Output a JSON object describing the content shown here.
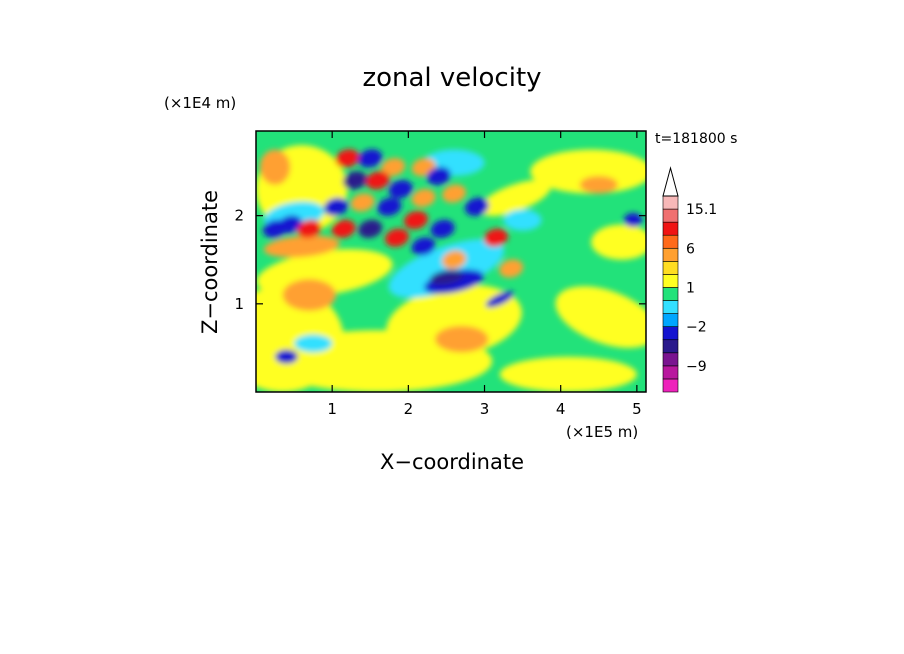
{
  "chart_data": {
    "type": "heatmap",
    "title": "zonal velocity",
    "xlabel": "X−coordinate",
    "ylabel": "Z−coordinate",
    "x_unit": "(×1E5 m)",
    "y_unit": "(×1E4 m)",
    "time_label": "t=181800 s",
    "xlim": [
      0,
      5.12
    ],
    "ylim": [
      0,
      2.96
    ],
    "x_ticks": [
      1,
      2,
      3,
      4,
      5
    ],
    "y_ticks": [
      1,
      2
    ],
    "colorbar": {
      "levels": [
        -15.1,
        -12,
        -9,
        -6,
        -3,
        -2,
        -1,
        0,
        1,
        2,
        3,
        6,
        9,
        12,
        15.1
      ],
      "colors": [
        "#ee22bb",
        "#b8179e",
        "#7a1490",
        "#2a1a8c",
        "#1414d0",
        "#00a6ff",
        "#33e0ff",
        "#22e27a",
        "#ffff22",
        "#ffdd22",
        "#ffa030",
        "#ff6a1a",
        "#f01414",
        "#f07070",
        "#f7b8b8"
      ],
      "tick_labels": [
        {
          "value": 15.1,
          "label": "15.1"
        },
        {
          "value": 6,
          "label": "6"
        },
        {
          "value": 1,
          "label": "1"
        },
        {
          "value": -2,
          "label": "−2"
        },
        {
          "value": -9,
          "label": "−9"
        }
      ]
    }
  }
}
